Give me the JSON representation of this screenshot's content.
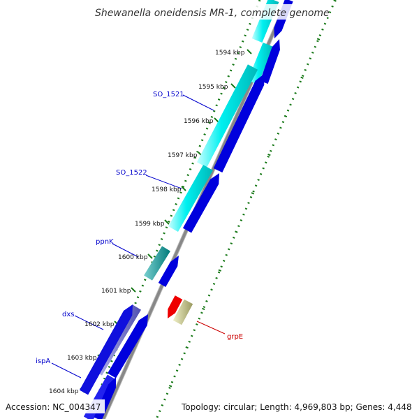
{
  "title": "Shewanella oneidensis MR-1, complete genome",
  "footer": {
    "accession": "Accession: NC_004347",
    "topology": "Topology: circular; Length: 4,969,803 bp; Genes: 4,448"
  },
  "colors": {
    "cds_dark": "#0000dd",
    "cds_cyan": "#00f0f0",
    "cds_teal": "#00a8a8",
    "cds_slate": "#7070cc",
    "cds_red": "#ee0000",
    "cds_khaki": "#c8c888",
    "backbone": "#888888",
    "ticks": "#1a7a1a",
    "label_forward": "#0000cc",
    "label_reverse": "#cc0000"
  },
  "kbp_labels": [
    "1594 kbp",
    "1595 kbp",
    "1596 kbp",
    "1597 kbp",
    "1598 kbp",
    "1599 kbp",
    "1600 kbp",
    "1601 kbp",
    "1602 kbp",
    "1603 kbp",
    "1604 kbp"
  ],
  "gene_labels": [
    {
      "text": "SO_1521",
      "strand": "forward"
    },
    {
      "text": "SO_1522",
      "strand": "forward"
    },
    {
      "text": "ppnK",
      "strand": "forward"
    },
    {
      "text": "dxs",
      "strand": "forward"
    },
    {
      "text": "ispA",
      "strand": "forward"
    },
    {
      "text": "grpE",
      "strand": "reverse"
    }
  ]
}
